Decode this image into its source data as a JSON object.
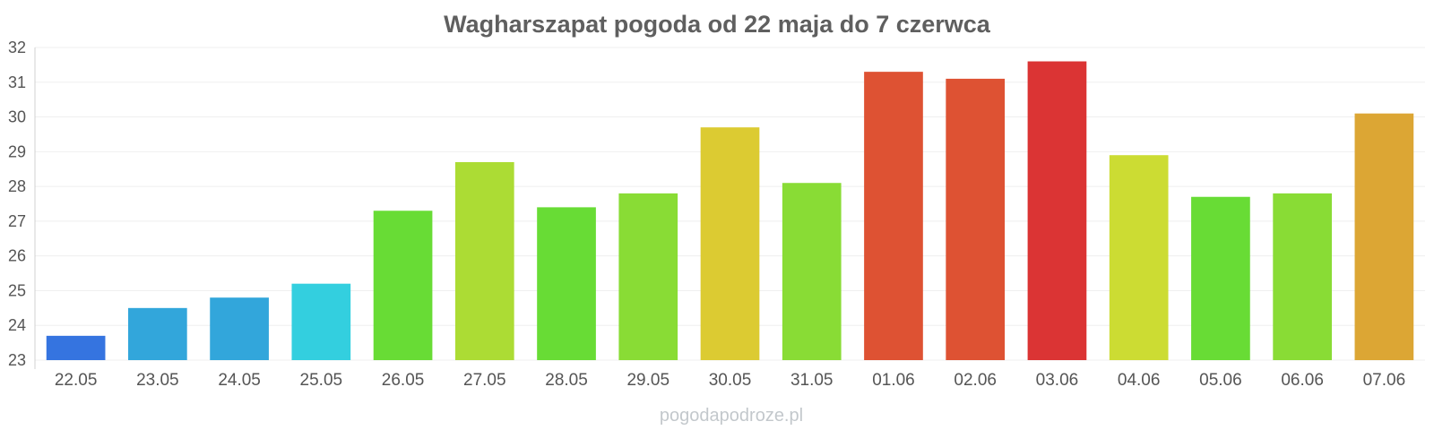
{
  "chart_data": {
    "type": "bar",
    "title": "Wagharszapat pogoda od 22 maja do 7 czerwca",
    "xlabel": "",
    "ylabel": "",
    "ylim": [
      23,
      32
    ],
    "yticks": [
      "23",
      "24",
      "25",
      "26",
      "27",
      "28",
      "29",
      "30",
      "31",
      "32"
    ],
    "grid": true,
    "legend": "none",
    "categories": [
      "22.05",
      "23.05",
      "24.05",
      "25.05",
      "26.05",
      "27.05",
      "28.05",
      "29.05",
      "30.05",
      "31.05",
      "01.06",
      "02.06",
      "03.06",
      "04.06",
      "05.06",
      "06.06",
      "07.06"
    ],
    "values": [
      23.7,
      24.5,
      24.8,
      25.2,
      27.3,
      28.7,
      27.4,
      27.8,
      29.7,
      28.1,
      31.3,
      31.1,
      31.6,
      28.9,
      27.7,
      27.8,
      30.1
    ],
    "colors": [
      "#3574e0",
      "#32a6db",
      "#32a6db",
      "#33cfdf",
      "#68dc35",
      "#acdc34",
      "#68dc35",
      "#89dc35",
      "#dccb32",
      "#89dc35",
      "#de5233",
      "#de5233",
      "#db3434",
      "#ccdc33",
      "#68dc35",
      "#89dc35",
      "#dca634"
    ]
  },
  "watermark": "pogodapodroze.pl"
}
